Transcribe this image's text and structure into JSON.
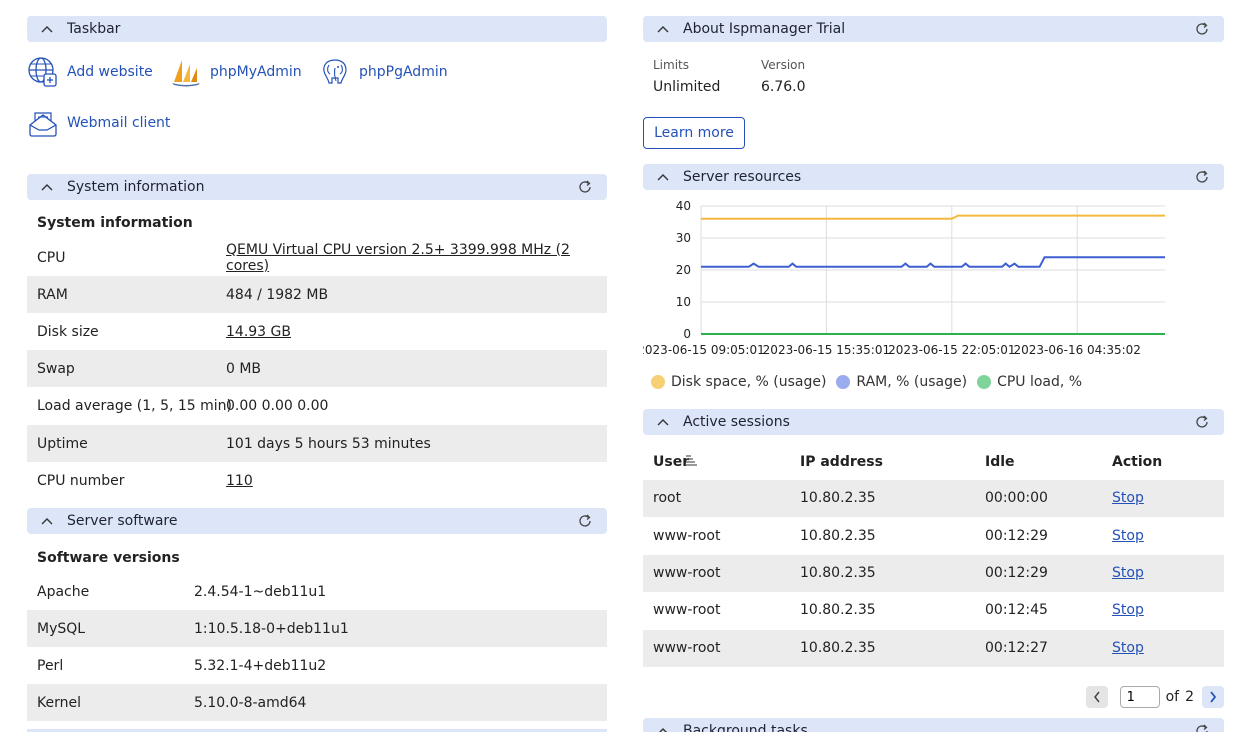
{
  "taskbar": {
    "title": "Taskbar",
    "items": [
      {
        "label": "Add website",
        "icon": "globe-plus-icon"
      },
      {
        "label": "phpMyAdmin",
        "icon": "phpmyadmin-icon"
      },
      {
        "label": "phpPgAdmin",
        "icon": "postgres-elephant-icon"
      },
      {
        "label": "Webmail client",
        "icon": "mail-tray-icon"
      }
    ]
  },
  "system_info": {
    "title": "System information",
    "subtitle": "System information",
    "rows": [
      {
        "key": "CPU",
        "value": "QEMU Virtual CPU version 2.5+ 3399.998 MHz (2 cores)"
      },
      {
        "key": "RAM",
        "value": "484 / 1982 MB"
      },
      {
        "key": "Disk size",
        "value": "14.93 GB"
      },
      {
        "key": "Swap",
        "value": "0 MB"
      },
      {
        "key": "Load average (1, 5, 15 min)",
        "value": "0.00 0.00 0.00"
      },
      {
        "key": "Uptime",
        "value": "101 days 5 hours 53 minutes"
      },
      {
        "key": "CPU number",
        "value": "110"
      }
    ]
  },
  "server_software": {
    "title": "Server software",
    "subtitle": "Software versions",
    "rows": [
      {
        "key": "Apache",
        "value": "2.4.54-1~deb11u1"
      },
      {
        "key": "MySQL",
        "value": "1:10.5.18-0+deb11u1"
      },
      {
        "key": "Perl",
        "value": "5.32.1-4+deb11u2"
      },
      {
        "key": "Kernel",
        "value": "5.10.0-8-amd64"
      }
    ]
  },
  "about": {
    "title": "About Ispmanager Trial",
    "limits_label": "Limits",
    "limits_value": "Unlimited",
    "version_label": "Version",
    "version_value": "6.76.0",
    "learn_more": "Learn more"
  },
  "server_resources": {
    "title": "Server resources"
  },
  "chart_data": {
    "type": "line",
    "x": [
      "2023-06-15 09:05:01",
      "2023-06-15 15:35:01",
      "2023-06-15 22:05:01",
      "2023-06-16 04:35:02"
    ],
    "ylim": [
      0,
      40
    ],
    "yticks": [
      "0",
      "10",
      "20",
      "30",
      "40"
    ],
    "grid": true,
    "legend_position": "bottom",
    "series": [
      {
        "name": "Disk space, % (usage)",
        "color": "#f5b83d",
        "legend_color": "#f7cf75",
        "values": [
          [
            0,
            36
          ],
          [
            2.0,
            36
          ],
          [
            2.05,
            37
          ],
          [
            3.7,
            37
          ]
        ]
      },
      {
        "name": "RAM, % (usage)",
        "color": "#3c5fd4",
        "legend_color": "#9aabee",
        "values": [
          [
            0,
            21
          ],
          [
            0.38,
            21
          ],
          [
            0.42,
            22
          ],
          [
            0.46,
            21
          ],
          [
            0.7,
            21
          ],
          [
            0.73,
            22
          ],
          [
            0.76,
            21
          ],
          [
            1.6,
            21
          ],
          [
            1.63,
            22
          ],
          [
            1.66,
            21
          ],
          [
            1.8,
            21
          ],
          [
            1.83,
            22
          ],
          [
            1.86,
            21
          ],
          [
            2.08,
            21
          ],
          [
            2.11,
            22
          ],
          [
            2.14,
            21
          ],
          [
            2.4,
            21
          ],
          [
            2.43,
            22
          ],
          [
            2.46,
            21
          ],
          [
            2.5,
            22
          ],
          [
            2.53,
            21
          ],
          [
            2.7,
            21
          ],
          [
            2.74,
            24
          ],
          [
            3.7,
            24
          ]
        ]
      },
      {
        "name": "CPU load, %",
        "color": "#2bb24c",
        "legend_color": "#7fd49a",
        "values": [
          [
            0,
            0
          ],
          [
            3.7,
            0
          ]
        ]
      }
    ]
  },
  "sessions": {
    "title": "Active sessions",
    "columns": [
      "User",
      "IP address",
      "Idle",
      "Action"
    ],
    "rows": [
      {
        "user": "root",
        "ip": "10.80.2.35",
        "idle": "00:00:00",
        "action": "Stop"
      },
      {
        "user": "www-root",
        "ip": "10.80.2.35",
        "idle": "00:12:29",
        "action": "Stop"
      },
      {
        "user": "www-root",
        "ip": "10.80.2.35",
        "idle": "00:12:29",
        "action": "Stop"
      },
      {
        "user": "www-root",
        "ip": "10.80.2.35",
        "idle": "00:12:45",
        "action": "Stop"
      },
      {
        "user": "www-root",
        "ip": "10.80.2.35",
        "idle": "00:12:27",
        "action": "Stop"
      }
    ],
    "pager": {
      "page": "1",
      "of_label": "of",
      "total": "2"
    }
  },
  "background_tasks": {
    "title": "Background tasks"
  }
}
